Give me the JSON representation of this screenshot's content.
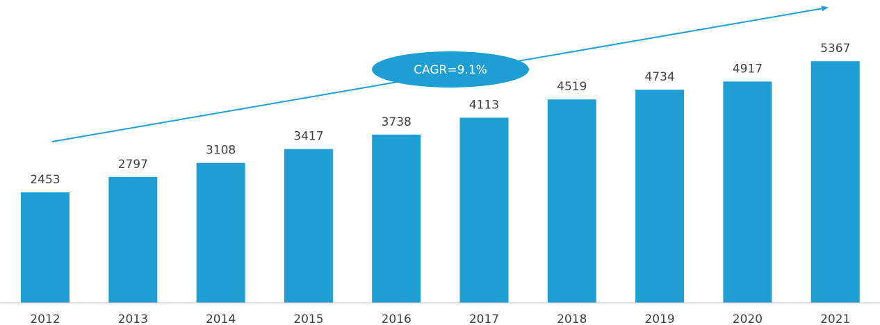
{
  "chart_data": {
    "type": "bar",
    "categories": [
      "2012",
      "2013",
      "2014",
      "2015",
      "2016",
      "2017",
      "2018",
      "2019",
      "2020",
      "2021"
    ],
    "values": [
      2453,
      2797,
      3108,
      3417,
      3738,
      4113,
      4519,
      4734,
      4917,
      5367
    ],
    "title": "",
    "xlabel": "",
    "ylabel": "",
    "ylim": [
      0,
      6500
    ],
    "grid": false,
    "legend": "none",
    "bar_color": "#1F9ED4",
    "annotation": {
      "text": "CAGR=9.1%",
      "shape": "ellipse",
      "arrow": "trend-up"
    }
  },
  "colors": {
    "bar": "#1F9ED4",
    "annotation_fill": "#1F9ED4",
    "annotation_text": "#FFFFFF",
    "trend_arrow": "#1F9ED4",
    "label_text": "#404040",
    "axis_line": "#BFBFBF"
  }
}
